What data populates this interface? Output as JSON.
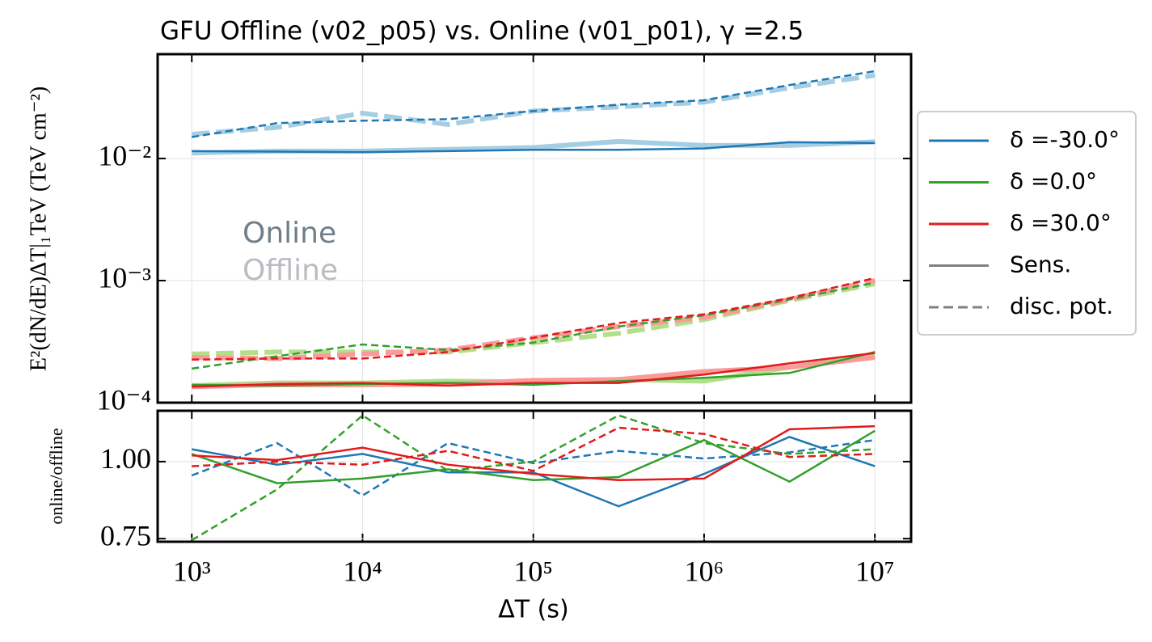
{
  "chart_data": [
    {
      "type": "line",
      "title": "GFU Offline (v02_p05) vs. Online (v01_p01), γ =2.5",
      "ylabel": "E²(dN/dE)ΔT|₁TeV  (TeV cm⁻²)",
      "xscale": "log",
      "yscale": "log",
      "grid": true,
      "x": [
        1000,
        3162,
        10000,
        31623,
        100000,
        316228,
        1000000,
        3162278,
        10000000
      ],
      "xlim": [
        631,
        16300000
      ],
      "xticks": [
        1000,
        10000,
        100000,
        1000000,
        10000000
      ],
      "ylim": [
        0.0001,
        0.0716
      ],
      "yticks": [
        {
          "value": 0.0001,
          "label": "10⁻⁴"
        },
        {
          "value": 0.001,
          "label": "10⁻³"
        },
        {
          "value": 0.01,
          "label": "10⁻²"
        }
      ],
      "annotations": [
        {
          "text": "Online",
          "color": "#6f7f8a"
        },
        {
          "text": "Offline",
          "color": "#b9bdc1"
        }
      ],
      "legend": {
        "position": "outside right",
        "entries": [
          {
            "label": "δ =-30.0°",
            "color": "#1f78b4",
            "linestyle": "solid"
          },
          {
            "label": "δ =0.0°",
            "color": "#33a02c",
            "linestyle": "solid"
          },
          {
            "label": "δ =30.0°",
            "color": "#e31a1c",
            "linestyle": "solid"
          },
          {
            "label": "Sens.",
            "color": "#808080",
            "linestyle": "solid"
          },
          {
            "label": "disc. pot.",
            "color": "#808080",
            "linestyle": "dashed"
          }
        ]
      },
      "series": [
        {
          "color": "#a6cee3",
          "linestyle": "solid",
          "linewidth": 6,
          "values": [
            0.0111,
            0.0115,
            0.0115,
            0.0119,
            0.0123,
            0.0138,
            0.0128,
            0.0128,
            0.0137
          ]
        },
        {
          "color": "#a6cee3",
          "linestyle": "dashed",
          "linewidth": 6,
          "values": [
            0.0158,
            0.018,
            0.0235,
            0.019,
            0.0245,
            0.0265,
            0.029,
            0.038,
            0.048
          ]
        },
        {
          "color": "#b2df8a",
          "linestyle": "solid",
          "linewidth": 6,
          "values": [
            0.000138,
            0.000145,
            0.000145,
            0.00015,
            0.000148,
            0.000155,
            0.00015,
            0.000195,
            0.000245
          ]
        },
        {
          "color": "#b2df8a",
          "linestyle": "dashed",
          "linewidth": 6,
          "values": [
            0.00025,
            0.00026,
            0.00026,
            0.00026,
            0.00031,
            0.00037,
            0.00048,
            0.00069,
            0.00094
          ]
        },
        {
          "color": "#fb9a99",
          "linestyle": "solid",
          "linewidth": 6,
          "values": [
            0.000135,
            0.00014,
            0.00014,
            0.000142,
            0.000152,
            0.000155,
            0.00018,
            0.000195,
            0.000235
          ]
        },
        {
          "color": "#fb9a99",
          "linestyle": "dashed",
          "linewidth": 6,
          "values": [
            0.000235,
            0.00023,
            0.00025,
            0.00027,
            0.00034,
            0.00042,
            0.0005,
            0.0007,
            0.001
          ]
        },
        {
          "color": "#1f78b4",
          "linestyle": "solid",
          "linewidth": 2.5,
          "values": [
            0.0115,
            0.0114,
            0.0113,
            0.0115,
            0.0118,
            0.0118,
            0.0121,
            0.0136,
            0.0134
          ]
        },
        {
          "color": "#1f78b4",
          "linestyle": "dashed",
          "linewidth": 2.5,
          "values": [
            0.015,
            0.0195,
            0.0204,
            0.021,
            0.0245,
            0.0276,
            0.03,
            0.04,
            0.052
          ]
        },
        {
          "color": "#33a02c",
          "linestyle": "solid",
          "linewidth": 2.5,
          "values": [
            0.00014,
            0.000138,
            0.000142,
            0.000145,
            0.00014,
            0.00015,
            0.00016,
            0.000175,
            0.00026
          ]
        },
        {
          "color": "#33a02c",
          "linestyle": "dashed",
          "linewidth": 2.5,
          "values": [
            0.00019,
            0.00024,
            0.0003,
            0.00027,
            0.00031,
            0.00042,
            0.00052,
            0.0007,
            0.00096
          ]
        },
        {
          "color": "#e31a1c",
          "linestyle": "solid",
          "linewidth": 2.5,
          "values": [
            0.000135,
            0.000142,
            0.000145,
            0.000138,
            0.000145,
            0.000145,
            0.00017,
            0.00021,
            0.000255
          ]
        },
        {
          "color": "#e31a1c",
          "linestyle": "dashed",
          "linewidth": 2.5,
          "values": [
            0.000225,
            0.00023,
            0.00023,
            0.00026,
            0.00034,
            0.00045,
            0.00053,
            0.00072,
            0.00105
          ]
        }
      ]
    },
    {
      "type": "line",
      "ylabel": "online/offline",
      "xlabel": "ΔT (s)",
      "xscale": "log",
      "grid": true,
      "x": [
        1000,
        3162,
        10000,
        31623,
        100000,
        316228,
        1000000,
        3162278,
        10000000
      ],
      "xlim": [
        631,
        16300000
      ],
      "xticks": [
        {
          "value": 1000,
          "label": "10³"
        },
        {
          "value": 10000,
          "label": "10⁴"
        },
        {
          "value": 100000,
          "label": "10⁵"
        },
        {
          "value": 1000000,
          "label": "10⁶"
        },
        {
          "value": 10000000,
          "label": "10⁷"
        }
      ],
      "ylim": [
        0.74,
        1.165
      ],
      "yticks": [
        0.75,
        {
          "value": 1,
          "label": "1.00"
        }
      ],
      "series": [
        {
          "color": "#1f78b4",
          "linestyle": "solid",
          "linewidth": 2.5,
          "values": [
            1.04,
            0.99,
            1.025,
            0.965,
            0.965,
            0.855,
            0.96,
            1.08,
            0.985
          ]
        },
        {
          "color": "#1f78b4",
          "linestyle": "dashed",
          "linewidth": 2.5,
          "values": [
            0.955,
            1.06,
            0.89,
            1.06,
            0.995,
            1.035,
            1.01,
            1.03,
            1.07
          ]
        },
        {
          "color": "#33a02c",
          "linestyle": "solid",
          "linewidth": 2.5,
          "values": [
            1.025,
            0.93,
            0.945,
            0.975,
            0.94,
            0.95,
            1.07,
            0.935,
            1.1
          ]
        },
        {
          "color": "#33a02c",
          "linestyle": "dashed",
          "linewidth": 2.5,
          "values": [
            0.745,
            0.91,
            1.15,
            0.97,
            1.0,
            1.15,
            1.06,
            1.025,
            1.04
          ]
        },
        {
          "color": "#e31a1c",
          "linestyle": "solid",
          "linewidth": 2.5,
          "values": [
            1.02,
            1.005,
            1.045,
            0.99,
            0.96,
            0.94,
            0.945,
            1.105,
            1.115
          ]
        },
        {
          "color": "#e31a1c",
          "linestyle": "dashed",
          "linewidth": 2.5,
          "values": [
            0.985,
            1.0,
            0.99,
            1.035,
            0.97,
            1.11,
            1.09,
            1.015,
            1.025
          ]
        }
      ]
    }
  ]
}
